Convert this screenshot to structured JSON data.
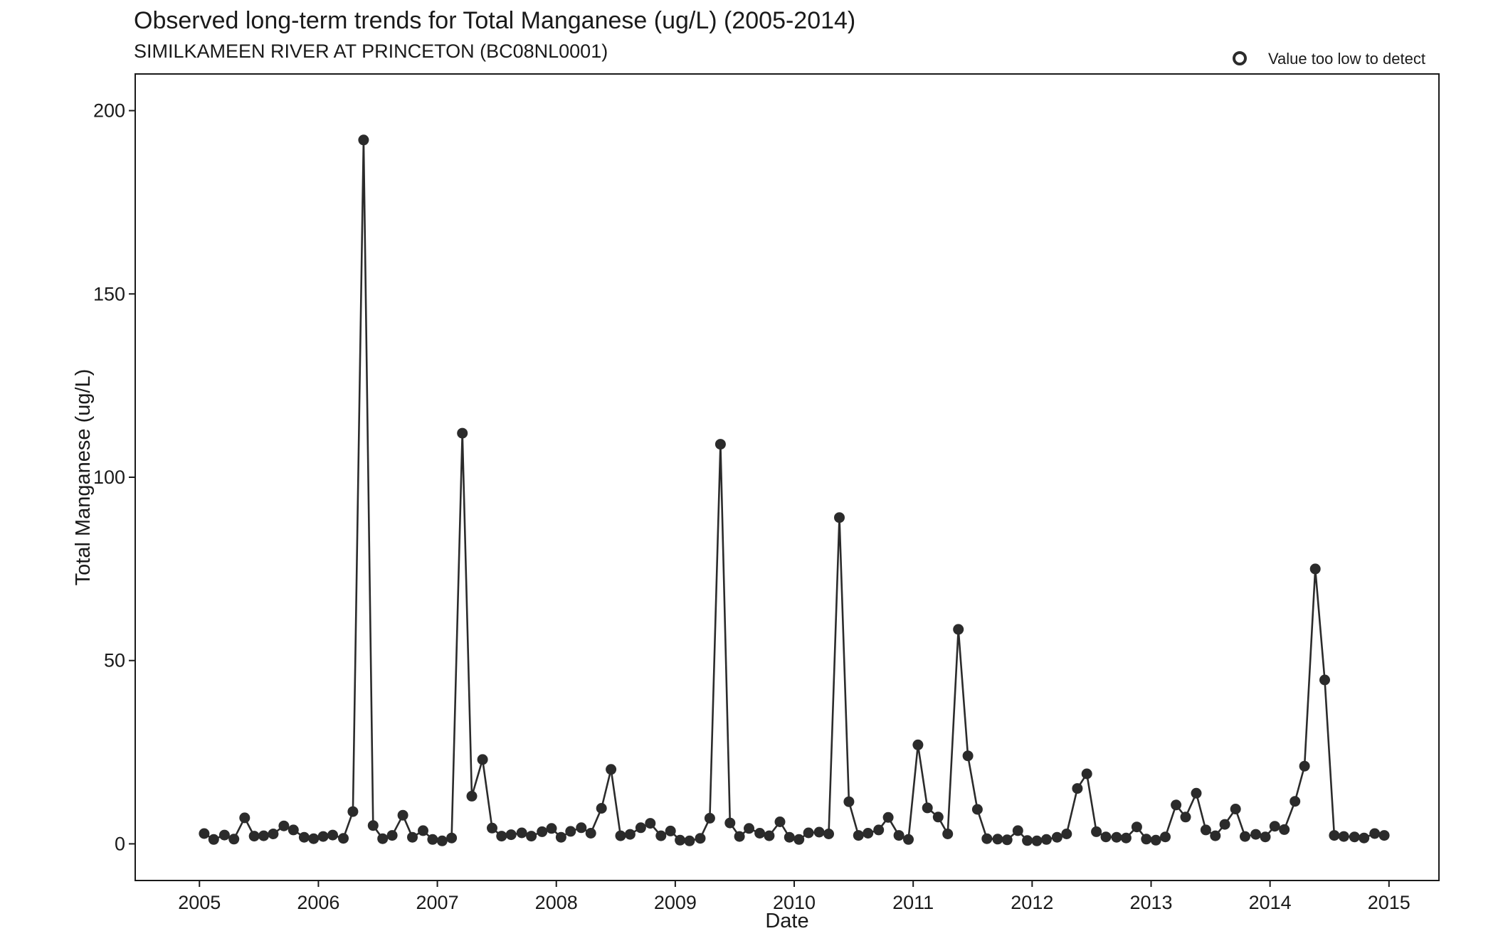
{
  "chart_data": {
    "type": "line",
    "title": "Observed long-term trends for Total Manganese (ug/L) (2005-2014)",
    "subtitle": "SIMILKAMEEN RIVER AT PRINCETON (BC08NL0001)",
    "xlabel": "Date",
    "ylabel": "Total Manganese (ug/L)",
    "xlim": [
      2004.46,
      2015.42
    ],
    "ylim": [
      -10,
      210
    ],
    "x_ticks": [
      "2005",
      "2006",
      "2007",
      "2008",
      "2009",
      "2010",
      "2011",
      "2012",
      "2013",
      "2014",
      "2015"
    ],
    "y_ticks": [
      "0",
      "50",
      "100",
      "150",
      "200"
    ],
    "grid": false,
    "legend": {
      "position": "top-right",
      "entries": [
        {
          "label": "Value too low to detect",
          "marker": "open-circle"
        }
      ]
    },
    "colors": {
      "series": "#2b2b2b",
      "frame": "#1a1a1a"
    },
    "series": [
      {
        "x": [
          2005.04,
          2005.12,
          2005.21,
          2005.29,
          2005.38,
          2005.46,
          2005.54,
          2005.62,
          2005.71,
          2005.79,
          2005.88,
          2005.96,
          2006.04,
          2006.12,
          2006.21,
          2006.29,
          2006.38,
          2006.46,
          2006.54,
          2006.62,
          2006.71,
          2006.79,
          2006.88,
          2006.96,
          2007.04,
          2007.12,
          2007.21,
          2007.29,
          2007.38,
          2007.46,
          2007.54,
          2007.62,
          2007.71,
          2007.79,
          2007.88,
          2007.96,
          2008.04,
          2008.12,
          2008.21,
          2008.29,
          2008.38,
          2008.46,
          2008.54,
          2008.62,
          2008.71,
          2008.79,
          2008.88,
          2008.96,
          2009.04,
          2009.12,
          2009.21,
          2009.29,
          2009.38,
          2009.46,
          2009.54,
          2009.62,
          2009.71,
          2009.79,
          2009.88,
          2009.96,
          2010.04,
          2010.12,
          2010.21,
          2010.29,
          2010.38,
          2010.46,
          2010.54,
          2010.62,
          2010.71,
          2010.79,
          2010.88,
          2010.96,
          2011.04,
          2011.12,
          2011.21,
          2011.29,
          2011.38,
          2011.46,
          2011.54,
          2011.62,
          2011.71,
          2011.79,
          2011.88,
          2011.96,
          2012.04,
          2012.12,
          2012.21,
          2012.29,
          2012.38,
          2012.46,
          2012.54,
          2012.62,
          2012.71,
          2012.79,
          2012.88,
          2012.96,
          2013.04,
          2013.12,
          2013.21,
          2013.29,
          2013.38,
          2013.46,
          2013.54,
          2013.62,
          2013.71,
          2013.79,
          2013.88,
          2013.96,
          2014.04,
          2014.12,
          2014.21,
          2014.29,
          2014.38,
          2014.46,
          2014.54,
          2014.62,
          2014.71,
          2014.79,
          2014.88,
          2014.96
        ],
        "y": [
          2.8,
          1.2,
          2.4,
          1.3,
          7.1,
          2.1,
          2.2,
          2.7,
          4.9,
          3.8,
          1.8,
          1.4,
          2.0,
          2.4,
          1.5,
          8.8,
          192,
          5.0,
          1.4,
          2.3,
          7.8,
          1.8,
          3.6,
          1.2,
          0.8,
          1.6,
          112,
          13,
          23,
          4.3,
          2.1,
          2.5,
          3.0,
          2.1,
          3.3,
          4.2,
          1.8,
          3.4,
          4.4,
          2.9,
          9.7,
          20.3,
          2.2,
          2.6,
          4.4,
          5.6,
          2.2,
          3.5,
          1.0,
          0.8,
          1.5,
          7.0,
          109,
          5.7,
          2.0,
          4.2,
          2.9,
          2.2,
          6.0,
          1.8,
          1.2,
          3.0,
          3.2,
          2.7,
          89,
          11.5,
          2.3,
          2.9,
          3.8,
          7.2,
          2.3,
          1.2,
          27,
          9.8,
          7.3,
          2.7,
          58.5,
          24,
          9.4,
          1.4,
          1.3,
          1.1,
          3.6,
          0.9,
          0.8,
          1.2,
          1.8,
          2.7,
          15.1,
          19.1,
          3.3,
          1.9,
          1.8,
          1.6,
          4.6,
          1.3,
          1.0,
          1.9,
          10.6,
          7.3,
          13.8,
          3.8,
          2.2,
          5.3,
          9.5,
          2.0,
          2.6,
          1.9,
          4.8,
          3.9,
          11.6,
          21.2,
          75,
          44.7,
          2.3,
          2.0,
          1.9,
          1.6,
          2.8,
          2.3
        ]
      }
    ]
  }
}
